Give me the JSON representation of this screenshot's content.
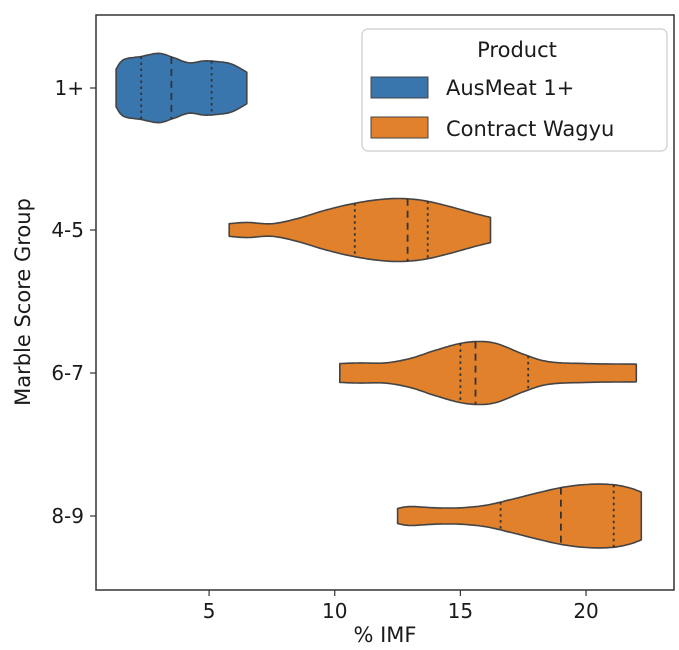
{
  "chart_data": {
    "type": "violin",
    "orientation": "horizontal",
    "xlabel": "% IMF",
    "ylabel": "Marble Score Group",
    "xlim": [
      0.5,
      23.5
    ],
    "xticks": [
      5,
      10,
      15,
      20
    ],
    "categories": [
      "1+",
      "4-5",
      "6-7",
      "8-9"
    ],
    "grid": false,
    "legend": {
      "title": "Product",
      "placement": "top-right",
      "entries": [
        "AusMeat 1+",
        "Contract Wagyu"
      ]
    },
    "series": [
      {
        "name": "AusMeat 1+",
        "color": "#3a76ae",
        "violins": [
          {
            "category": "1+",
            "min": 1.3,
            "max": 6.5,
            "quartiles": [
              2.3,
              3.5,
              5.1
            ],
            "profile": [
              [
                1.3,
                0.3
              ],
              [
                1.6,
                0.45
              ],
              [
                2.3,
                0.5
              ],
              [
                3.0,
                0.55
              ],
              [
                3.6,
                0.48
              ],
              [
                4.2,
                0.4
              ],
              [
                4.8,
                0.43
              ],
              [
                5.3,
                0.42
              ],
              [
                5.9,
                0.38
              ],
              [
                6.5,
                0.25
              ]
            ]
          }
        ]
      },
      {
        "name": "Contract Wagyu",
        "color": "#e1812c",
        "violins": [
          {
            "category": "4-5",
            "min": 5.8,
            "max": 16.2,
            "quartiles": [
              10.8,
              12.9,
              13.7
            ],
            "profile": [
              [
                5.8,
                0.1
              ],
              [
                6.5,
                0.12
              ],
              [
                7.5,
                0.1
              ],
              [
                8.5,
                0.18
              ],
              [
                9.5,
                0.3
              ],
              [
                10.5,
                0.4
              ],
              [
                11.5,
                0.47
              ],
              [
                12.5,
                0.5
              ],
              [
                13.5,
                0.47
              ],
              [
                14.5,
                0.38
              ],
              [
                15.5,
                0.27
              ],
              [
                16.2,
                0.2
              ]
            ]
          },
          {
            "category": "6-7",
            "min": 10.2,
            "max": 22.0,
            "quartiles": [
              15.0,
              15.6,
              17.7
            ],
            "profile": [
              [
                10.2,
                0.15
              ],
              [
                11.0,
                0.16
              ],
              [
                12.0,
                0.16
              ],
              [
                13.0,
                0.23
              ],
              [
                14.0,
                0.36
              ],
              [
                15.0,
                0.47
              ],
              [
                15.8,
                0.5
              ],
              [
                16.5,
                0.46
              ],
              [
                17.5,
                0.3
              ],
              [
                18.5,
                0.18
              ],
              [
                20.0,
                0.15
              ],
              [
                22.0,
                0.14
              ]
            ]
          },
          {
            "category": "8-9",
            "min": 12.5,
            "max": 22.2,
            "quartiles": [
              16.6,
              19.0,
              21.1
            ],
            "profile": [
              [
                12.5,
                0.12
              ],
              [
                13.0,
                0.15
              ],
              [
                14.0,
                0.13
              ],
              [
                15.0,
                0.13
              ],
              [
                16.0,
                0.17
              ],
              [
                17.0,
                0.26
              ],
              [
                18.0,
                0.36
              ],
              [
                19.0,
                0.45
              ],
              [
                20.0,
                0.5
              ],
              [
                21.0,
                0.5
              ],
              [
                21.7,
                0.45
              ],
              [
                22.2,
                0.38
              ]
            ]
          }
        ]
      }
    ]
  }
}
